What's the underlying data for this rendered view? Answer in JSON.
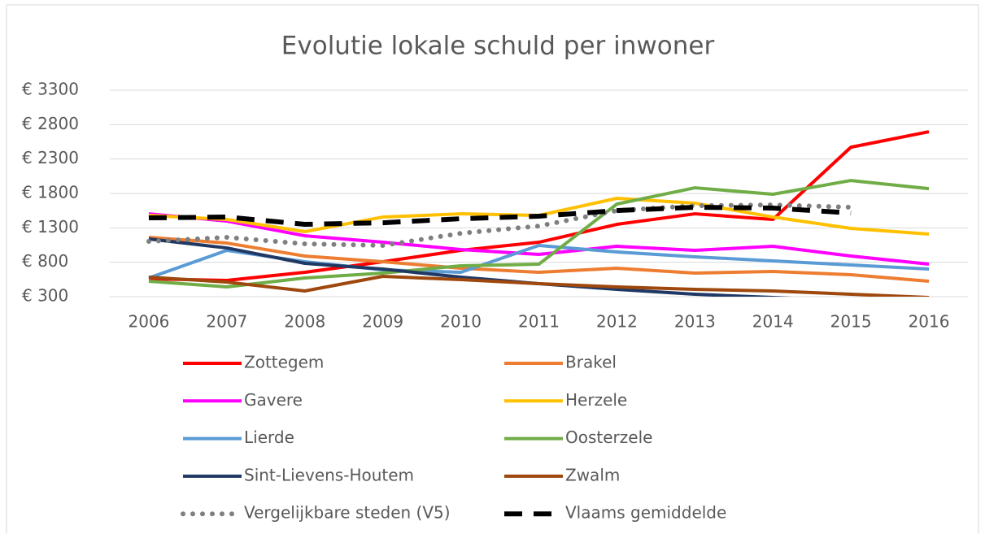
{
  "chart_data": {
    "type": "line",
    "title": "Evolutie lokale schuld per inwoner",
    "categories": [
      "2006",
      "2007",
      "2008",
      "2009",
      "2010",
      "2011",
      "2012",
      "2013",
      "2014",
      "2015",
      "2016"
    ],
    "ylim": [
      300,
      3300
    ],
    "yticks": [
      {
        "value": 300,
        "label": "€ 300"
      },
      {
        "value": 800,
        "label": "€ 800"
      },
      {
        "value": 1300,
        "label": "€ 1300"
      },
      {
        "value": 1800,
        "label": "€ 1800"
      },
      {
        "value": 2300,
        "label": "€ 2300"
      },
      {
        "value": 2800,
        "label": "€ 2800"
      },
      {
        "value": 3300,
        "label": "€ 3300"
      }
    ],
    "grid": true,
    "legend": "bottom",
    "series": [
      {
        "name": "Zottegem",
        "color": "#ff0000",
        "values": [
          560,
          536,
          654,
          808,
          973,
          1091,
          1351,
          1504,
          1422,
          2472,
          2697
        ]
      },
      {
        "name": "Brakel",
        "color": "#ed7d31",
        "values": [
          1162,
          1079,
          890,
          808,
          713,
          654,
          713,
          642,
          666,
          619,
          524
        ]
      },
      {
        "name": "Gavere",
        "color": "#ff00ff",
        "values": [
          1504,
          1398,
          1185,
          1091,
          985,
          914,
          1032,
          973,
          1032,
          890,
          772
        ]
      },
      {
        "name": "Herzele",
        "color": "#ffc000",
        "values": [
          1481,
          1422,
          1245,
          1457,
          1504,
          1481,
          1729,
          1658,
          1457,
          1292,
          1209
        ]
      },
      {
        "name": "Lierde",
        "color": "#5b9bd5",
        "values": [
          572,
          973,
          808,
          690,
          654,
          1044,
          949,
          879,
          820,
          760,
          701
        ]
      },
      {
        "name": "Oosterzele",
        "color": "#70ad47",
        "values": [
          524,
          442,
          572,
          642,
          749,
          772,
          1646,
          1882,
          1788,
          1988,
          1870
        ]
      },
      {
        "name": "Sint-Lievens-Houtem",
        "color": "#203864",
        "values": [
          1138,
          1008,
          784,
          701,
          583,
          489,
          406,
          335,
          288,
          241,
          194
        ]
      },
      {
        "name": "Zwalm",
        "color": "#9e480e",
        "values": [
          583,
          512,
          383,
          595,
          548,
          489,
          442,
          406,
          383,
          335,
          288
        ]
      },
      {
        "name": "Vergelijkbare steden (V5)",
        "color": "#7f7f7f",
        "dash": "dotted",
        "values": [
          1103,
          1162,
          1067,
          1044,
          1221,
          1327,
          1551,
          1622,
          1634,
          1599,
          null
        ]
      },
      {
        "name": "Vlaams gemiddelde",
        "color": "#000000",
        "dash": "dashed",
        "values": [
          1445,
          1457,
          1351,
          1374,
          1433,
          1469,
          1551,
          1599,
          1587,
          1516,
          null
        ]
      }
    ]
  }
}
